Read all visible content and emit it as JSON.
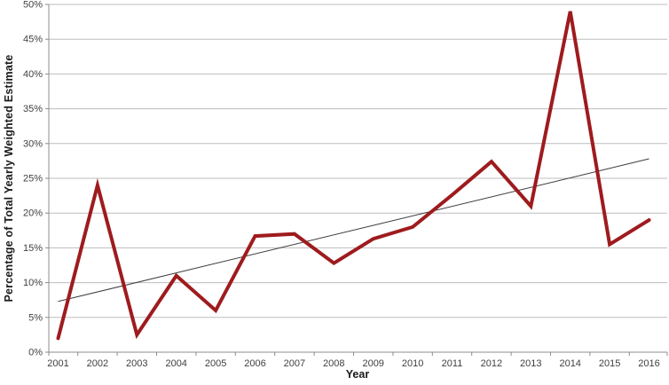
{
  "chart_data": {
    "type": "line",
    "title": "",
    "xlabel": "Year",
    "ylabel": "Percentage of Total Yearly Weighted Estimate",
    "categories": [
      "2001",
      "2002",
      "2003",
      "2004",
      "2005",
      "2006",
      "2007",
      "2008",
      "2009",
      "2010",
      "2011",
      "2012",
      "2013",
      "2014",
      "2015",
      "2016"
    ],
    "series": [
      {
        "name": "percentage-of-total-yearly-weighted-estimate",
        "values": [
          2.0,
          24.0,
          2.5,
          11.0,
          6.0,
          16.7,
          17.0,
          12.8,
          16.3,
          18.0,
          22.6,
          27.4,
          21.0,
          49.0,
          15.5,
          19.0
        ],
        "color": "#9E1B1E"
      }
    ],
    "trendline": {
      "type": "linear",
      "start_value": 7.3,
      "end_value": 27.8,
      "color": "#3c3c3c"
    },
    "ylim": [
      0,
      50
    ],
    "ytick_step": 5,
    "ytick_labels": [
      "0%",
      "5%",
      "10%",
      "15%",
      "20%",
      "25%",
      "30%",
      "35%",
      "40%",
      "45%",
      "50%"
    ],
    "grid": true,
    "legend_position": "none",
    "colors": {
      "grid": "#bdbdbd",
      "axis": "#8c8c8c",
      "tick_text": "#3f3f3f",
      "background": "#ffffff"
    }
  }
}
